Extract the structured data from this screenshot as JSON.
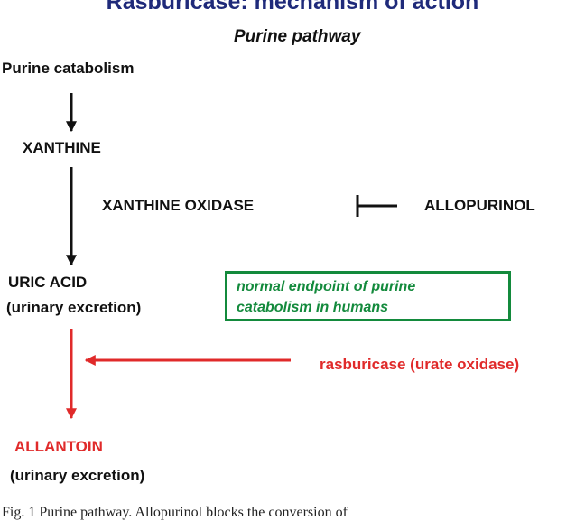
{
  "heading": "Rasburicase: mechanism of action",
  "subheading": "Purine pathway",
  "nodes": {
    "purine_catabolism": "Purine catabolism",
    "xanthine": "XANTHINE",
    "xanthine_oxidase": "XANTHINE  OXIDASE",
    "allopurinol": "ALLOPURINOL",
    "uric_acid": "URIC  ACID",
    "uric_acid_note": "(urinary  excretion)",
    "rasburicase": "rasburicase (urate oxidase)",
    "allantoin": "ALLANTOIN",
    "allantoin_note": "(urinary excretion)"
  },
  "endpoint_box": {
    "line1": "normal endpoint of purine",
    "line2": "catabolism in humans"
  },
  "caption": "Fig. 1 Purine pathway. Allopurinol blocks the conversion of",
  "colors": {
    "heading": "#1f2a7a",
    "black_arrows": "#111111",
    "rasburicase_red": "#e02a2a",
    "endpoint_green": "#138a3c"
  }
}
